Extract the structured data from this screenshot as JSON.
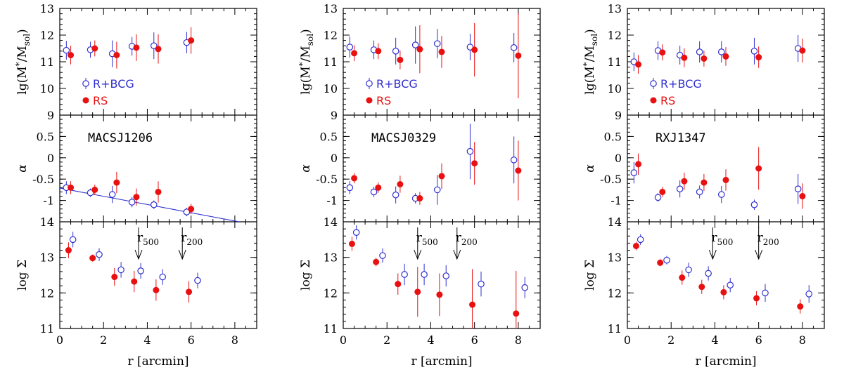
{
  "chart_data": {
    "type": "scatter",
    "x_label": "r [arcmin]",
    "x_range": [
      0,
      9
    ],
    "x_ticks": [
      "0",
      "2",
      "4",
      "6",
      "8"
    ],
    "rows": [
      {
        "key": "mstar",
        "label": "lg(M*/Msol)",
        "range": [
          9,
          13
        ],
        "ticks": [
          "9",
          "10",
          "11",
          "12",
          "13"
        ]
      },
      {
        "key": "alpha",
        "label": "α",
        "range": [
          -1.5,
          1.0
        ],
        "ticks": [
          "-1",
          "-0.5",
          "0",
          "0.5"
        ]
      },
      {
        "key": "sigma",
        "label": "log Σ",
        "range": [
          11,
          14
        ],
        "ticks": [
          "11",
          "12",
          "13",
          "14"
        ]
      }
    ],
    "legend": [
      {
        "key": "rbcg",
        "label": "R+BCG",
        "color": "#2f2fd0",
        "marker": "open-circle"
      },
      {
        "key": "rs",
        "label": "RS",
        "color": "#e81010",
        "marker": "filled-circle"
      }
    ],
    "r500_label": "r",
    "r500_sub": "500",
    "r200_label": "r",
    "r200_sub": "200",
    "panels": [
      {
        "name": "MACSJ1206",
        "r500": 3.6,
        "r200": 5.6,
        "fit_line": {
          "x": [
            0,
            8.2
          ],
          "y": [
            -0.71,
            -1.5
          ]
        },
        "mstar": {
          "rbcg": [
            [
              0.3,
              11.43,
              0.35,
              0.35
            ],
            [
              1.4,
              11.45,
              0.3,
              0.3
            ],
            [
              2.4,
              11.3,
              0.5,
              0.5
            ],
            [
              3.3,
              11.58,
              0.35,
              0.35
            ],
            [
              4.3,
              11.6,
              0.5,
              0.5
            ],
            [
              5.8,
              11.72,
              0.4,
              0.4
            ]
          ],
          "rs": [
            [
              0.5,
              11.25,
              0.35,
              0.35
            ],
            [
              1.6,
              11.5,
              0.3,
              0.3
            ],
            [
              2.6,
              11.25,
              0.5,
              0.5
            ],
            [
              3.5,
              11.53,
              0.5,
              0.5
            ],
            [
              4.5,
              11.48,
              0.55,
              0.55
            ],
            [
              6.0,
              11.8,
              0.5,
              0.5
            ]
          ]
        },
        "alpha": {
          "rbcg": [
            [
              0.3,
              -0.7,
              0.15,
              0.15
            ],
            [
              1.4,
              -0.82,
              0.1,
              0.1
            ],
            [
              2.4,
              -0.86,
              0.2,
              0.2
            ],
            [
              3.3,
              -1.04,
              0.12,
              0.12
            ],
            [
              4.3,
              -1.1,
              0.1,
              0.1
            ],
            [
              5.8,
              -1.27,
              0.1,
              0.1
            ]
          ],
          "rs": [
            [
              0.5,
              -0.7,
              0.15,
              0.15
            ],
            [
              1.6,
              -0.75,
              0.12,
              0.12
            ],
            [
              2.6,
              -0.58,
              0.25,
              0.25
            ],
            [
              3.5,
              -0.92,
              0.2,
              0.2
            ],
            [
              4.5,
              -0.8,
              0.25,
              0.25
            ],
            [
              6.0,
              -1.2,
              0.12,
              0.12
            ]
          ]
        },
        "sigma": {
          "rbcg": [
            [
              0.6,
              13.5,
              0.22,
              0.22
            ],
            [
              1.8,
              13.08,
              0.18,
              0.18
            ],
            [
              2.8,
              12.65,
              0.22,
              0.22
            ],
            [
              3.7,
              12.62,
              0.22,
              0.22
            ],
            [
              4.7,
              12.45,
              0.22,
              0.22
            ],
            [
              6.3,
              12.35,
              0.22,
              0.22
            ]
          ],
          "rs": [
            [
              0.4,
              13.2,
              0.22,
              0.22
            ],
            [
              1.5,
              12.98,
              0.1,
              0.1
            ],
            [
              2.5,
              12.45,
              0.25,
              0.25
            ],
            [
              3.4,
              12.32,
              0.3,
              0.3
            ],
            [
              4.4,
              12.08,
              0.3,
              0.3
            ],
            [
              5.9,
              12.03,
              0.3,
              0.3
            ]
          ]
        }
      },
      {
        "name": "MACSJ0329",
        "r500": 3.4,
        "r200": 5.2,
        "fit_line": null,
        "mstar": {
          "rbcg": [
            [
              0.3,
              11.55,
              0.4,
              0.4
            ],
            [
              1.4,
              11.45,
              0.35,
              0.35
            ],
            [
              2.4,
              11.4,
              0.5,
              0.5
            ],
            [
              3.3,
              11.63,
              0.7,
              0.7
            ],
            [
              4.3,
              11.68,
              0.55,
              0.55
            ],
            [
              5.8,
              11.55,
              0.5,
              0.5
            ],
            [
              7.8,
              11.53,
              0.55,
              0.55
            ]
          ],
          "rs": [
            [
              0.5,
              11.32,
              0.3,
              0.3
            ],
            [
              1.6,
              11.4,
              0.3,
              0.3
            ],
            [
              2.6,
              11.07,
              0.35,
              0.35
            ],
            [
              3.5,
              11.47,
              0.9,
              0.9
            ],
            [
              4.5,
              11.37,
              0.6,
              0.6
            ],
            [
              6.0,
              11.45,
              1.0,
              1.0
            ],
            [
              8.0,
              11.23,
              1.6,
              1.6
            ]
          ]
        },
        "alpha": {
          "rbcg": [
            [
              0.3,
              -0.7,
              0.15,
              0.15
            ],
            [
              1.4,
              -0.8,
              0.12,
              0.12
            ],
            [
              2.4,
              -0.87,
              0.2,
              0.2
            ],
            [
              3.3,
              -0.95,
              0.12,
              0.12
            ],
            [
              4.3,
              -0.75,
              0.35,
              0.35
            ],
            [
              5.8,
              0.15,
              0.65,
              0.65
            ],
            [
              7.8,
              -0.05,
              0.55,
              0.55
            ]
          ],
          "rs": [
            [
              0.5,
              -0.48,
              0.12,
              0.12
            ],
            [
              1.6,
              -0.7,
              0.12,
              0.12
            ],
            [
              2.6,
              -0.62,
              0.2,
              0.2
            ],
            [
              3.5,
              -0.95,
              0.15,
              0.15
            ],
            [
              4.5,
              -0.43,
              0.3,
              0.3
            ],
            [
              6.0,
              -0.13,
              0.5,
              0.5
            ],
            [
              8.0,
              -0.3,
              0.7,
              0.7
            ]
          ]
        },
        "sigma": {
          "rbcg": [
            [
              0.6,
              13.7,
              0.2,
              0.2
            ],
            [
              1.8,
              13.05,
              0.2,
              0.2
            ],
            [
              2.8,
              12.52,
              0.3,
              0.3
            ],
            [
              3.7,
              12.52,
              0.3,
              0.3
            ],
            [
              4.7,
              12.48,
              0.3,
              0.3
            ],
            [
              6.3,
              12.25,
              0.35,
              0.35
            ],
            [
              8.3,
              12.15,
              0.3,
              0.3
            ]
          ],
          "rs": [
            [
              0.4,
              13.38,
              0.2,
              0.2
            ],
            [
              1.5,
              12.87,
              0.12,
              0.12
            ],
            [
              2.5,
              12.25,
              0.3,
              0.3
            ],
            [
              3.4,
              12.03,
              0.7,
              0.7
            ],
            [
              4.4,
              11.95,
              0.6,
              0.6
            ],
            [
              5.9,
              11.67,
              1.0,
              1.0
            ],
            [
              7.9,
              11.42,
              1.2,
              1.2
            ]
          ]
        }
      },
      {
        "name": "RXJ1347",
        "r500": 3.9,
        "r200": 6.0,
        "fit_line": null,
        "mstar": {
          "rbcg": [
            [
              0.3,
              11.0,
              0.35,
              0.35
            ],
            [
              1.4,
              11.42,
              0.35,
              0.35
            ],
            [
              2.4,
              11.25,
              0.35,
              0.35
            ],
            [
              3.3,
              11.37,
              0.4,
              0.4
            ],
            [
              4.3,
              11.37,
              0.4,
              0.4
            ],
            [
              5.8,
              11.4,
              0.5,
              0.5
            ],
            [
              7.8,
              11.5,
              0.5,
              0.5
            ]
          ],
          "rs": [
            [
              0.5,
              10.9,
              0.35,
              0.35
            ],
            [
              1.6,
              11.35,
              0.3,
              0.3
            ],
            [
              2.6,
              11.15,
              0.35,
              0.35
            ],
            [
              3.5,
              11.12,
              0.3,
              0.3
            ],
            [
              4.5,
              11.2,
              0.35,
              0.35
            ],
            [
              6.0,
              11.17,
              0.4,
              0.4
            ],
            [
              8.0,
              11.42,
              0.45,
              0.45
            ]
          ]
        },
        "alpha": {
          "rbcg": [
            [
              0.3,
              -0.35,
              0.25,
              0.25
            ],
            [
              1.4,
              -0.93,
              0.1,
              0.1
            ],
            [
              2.4,
              -0.73,
              0.2,
              0.2
            ],
            [
              3.3,
              -0.8,
              0.15,
              0.15
            ],
            [
              4.3,
              -0.86,
              0.2,
              0.2
            ],
            [
              5.8,
              -1.1,
              0.12,
              0.12
            ],
            [
              7.8,
              -0.73,
              0.35,
              0.35
            ]
          ],
          "rs": [
            [
              0.5,
              -0.15,
              0.25,
              0.25
            ],
            [
              1.6,
              -0.8,
              0.12,
              0.12
            ],
            [
              2.6,
              -0.55,
              0.2,
              0.2
            ],
            [
              3.5,
              -0.58,
              0.2,
              0.2
            ],
            [
              4.5,
              -0.52,
              0.25,
              0.25
            ],
            [
              6.0,
              -0.25,
              0.5,
              0.5
            ],
            [
              8.0,
              -0.9,
              0.3,
              0.3
            ]
          ]
        },
        "sigma": {
          "rbcg": [
            [
              0.6,
              13.5,
              0.15,
              0.15
            ],
            [
              1.8,
              12.92,
              0.12,
              0.12
            ],
            [
              2.8,
              12.65,
              0.2,
              0.2
            ],
            [
              3.7,
              12.55,
              0.2,
              0.2
            ],
            [
              4.7,
              12.22,
              0.2,
              0.2
            ],
            [
              6.3,
              12.0,
              0.25,
              0.25
            ],
            [
              8.3,
              11.97,
              0.25,
              0.25
            ]
          ],
          "rs": [
            [
              0.4,
              13.32,
              0.12,
              0.12
            ],
            [
              1.5,
              12.85,
              0.1,
              0.1
            ],
            [
              2.5,
              12.43,
              0.2,
              0.2
            ],
            [
              3.4,
              12.17,
              0.2,
              0.2
            ],
            [
              4.4,
              12.02,
              0.2,
              0.2
            ],
            [
              5.9,
              11.85,
              0.2,
              0.2
            ],
            [
              7.9,
              11.62,
              0.2,
              0.2
            ]
          ]
        }
      }
    ]
  }
}
